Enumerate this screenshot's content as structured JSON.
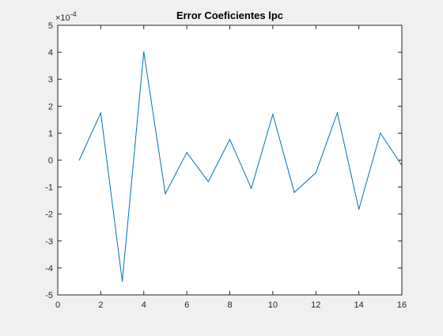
{
  "figure": {
    "background": "#f0f0f0",
    "axes_background": "#ffffff"
  },
  "chart_data": {
    "type": "line",
    "title": "Error Coeficientes lpc",
    "xlabel": "",
    "ylabel": "",
    "xlim": [
      0,
      16
    ],
    "ylim": [
      -5,
      5
    ],
    "y_exponent_label": "×10",
    "y_exponent_power": "-4",
    "x_ticks": [
      0,
      2,
      4,
      6,
      8,
      10,
      12,
      14,
      16
    ],
    "x_tick_labels": [
      "0",
      "2",
      "4",
      "6",
      "8",
      "10",
      "12",
      "14",
      "16"
    ],
    "y_ticks": [
      -5,
      -4,
      -3,
      -2,
      -1,
      0,
      1,
      2,
      3,
      4,
      5
    ],
    "y_tick_labels": [
      "-5",
      "-4",
      "-3",
      "-2",
      "-1",
      "0",
      "1",
      "2",
      "3",
      "4",
      "5"
    ],
    "grid": false,
    "series": [
      {
        "color": "#0072bd",
        "x": [
          1,
          2,
          3,
          4,
          5,
          6,
          7,
          8,
          9,
          10,
          11,
          12,
          13,
          14,
          15,
          16
        ],
        "y": [
          0,
          1.75,
          -4.5,
          4.02,
          -1.25,
          0.28,
          -0.8,
          0.77,
          -1.05,
          1.7,
          -1.2,
          -0.47,
          1.75,
          -1.83,
          1.0,
          -0.2
        ]
      }
    ]
  }
}
